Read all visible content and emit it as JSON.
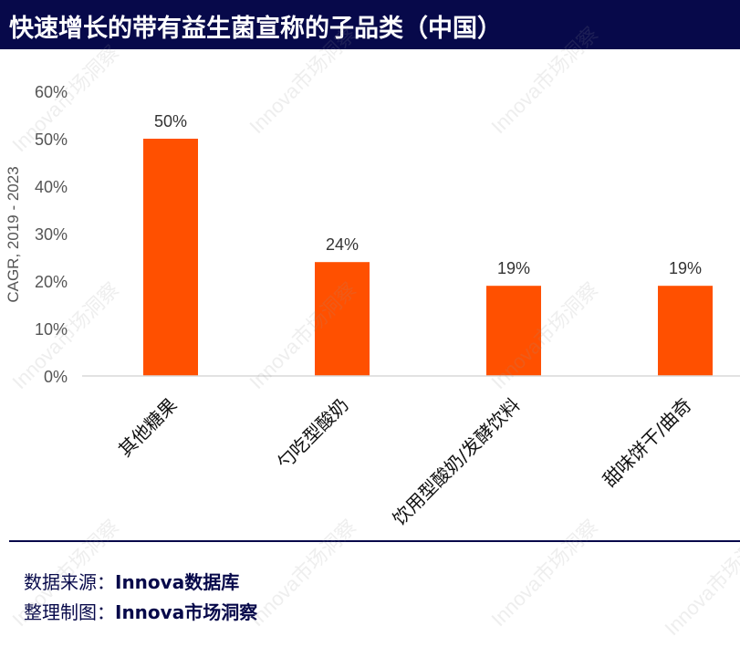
{
  "title": "快速增长的带有益生菌宣称的子品类（中国）",
  "footer": {
    "source_label": "数据来源：",
    "source_value": "Innova数据库",
    "editor_label": "整理制图：",
    "editor_value": "Innova市场洞察"
  },
  "watermark_text": "Innova市场洞察",
  "chart_data": {
    "type": "bar",
    "categories": [
      "其他糖果",
      "勺吃型酸奶",
      "饮用型酸奶/发酵饮料",
      "甜味饼干/曲奇"
    ],
    "values": [
      50,
      24,
      19,
      19
    ],
    "data_labels": [
      "50%",
      "24%",
      "19%",
      "19%"
    ],
    "ylabel": "CAGR, 2019 - 2023",
    "ylim": [
      0,
      60
    ],
    "yticks": [
      0,
      10,
      20,
      30,
      40,
      50,
      60
    ],
    "ytick_labels": [
      "0%",
      "10%",
      "20%",
      "30%",
      "40%",
      "50%",
      "60%"
    ],
    "bar_color": "#ff5000",
    "grid": false,
    "legend": "none"
  },
  "colors": {
    "header_bg": "#07094a",
    "text_navy": "#07094a",
    "axis_text": "#555555"
  }
}
